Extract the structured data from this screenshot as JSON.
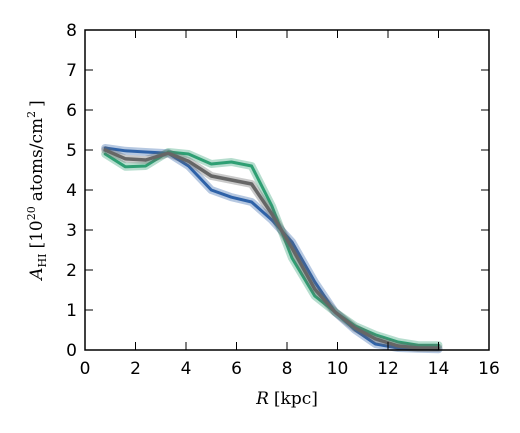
{
  "chart_data": {
    "type": "line",
    "xlabel": {
      "symbol": "R",
      "unit": "[kpc]"
    },
    "ylabel": {
      "symbol": "A",
      "subscript": "HI",
      "unit_open": "[10",
      "unit_exp": "20",
      "unit_mid": "atoms/cm",
      "unit_sup": "2",
      "unit_close": "]"
    },
    "xlim": [
      0,
      16
    ],
    "ylim": [
      0,
      8
    ],
    "xticks": [
      "0",
      "2",
      "4",
      "6",
      "8",
      "10",
      "12",
      "14",
      "16"
    ],
    "yticks": [
      "0",
      "1",
      "2",
      "3",
      "4",
      "5",
      "6",
      "7",
      "8"
    ],
    "grid": false,
    "series": [
      {
        "color": "#2e62a8",
        "x": [
          0.8,
          1.6,
          2.4,
          3.3,
          4.1,
          5.0,
          5.8,
          6.6,
          7.4,
          8.2,
          9.1,
          9.9,
          10.7,
          11.5,
          12.4,
          13.2,
          14.0
        ],
        "y": [
          5.05,
          4.98,
          4.95,
          4.92,
          4.6,
          4.0,
          3.82,
          3.7,
          3.25,
          2.7,
          1.7,
          0.95,
          0.5,
          0.15,
          0.05,
          0.03,
          0.02
        ]
      },
      {
        "color": "#2e9f73",
        "x": [
          0.8,
          1.6,
          2.4,
          3.3,
          4.1,
          5.0,
          5.8,
          6.6,
          7.4,
          8.2,
          9.1,
          9.9,
          10.7,
          11.5,
          12.4,
          13.2,
          14.0
        ],
        "y": [
          4.9,
          4.58,
          4.6,
          4.95,
          4.9,
          4.65,
          4.7,
          4.6,
          3.6,
          2.3,
          1.35,
          0.95,
          0.6,
          0.38,
          0.2,
          0.12,
          0.12
        ]
      },
      {
        "color": "#666666",
        "x": [
          0.8,
          1.6,
          2.4,
          3.3,
          4.1,
          5.0,
          5.8,
          6.6,
          7.4,
          8.2,
          9.1,
          9.9,
          10.7,
          11.5,
          12.4,
          13.2,
          14.0
        ],
        "y": [
          5.0,
          4.78,
          4.75,
          4.92,
          4.72,
          4.35,
          4.25,
          4.15,
          3.4,
          2.55,
          1.52,
          0.95,
          0.55,
          0.28,
          0.1,
          0.05,
          0.05
        ]
      }
    ]
  }
}
